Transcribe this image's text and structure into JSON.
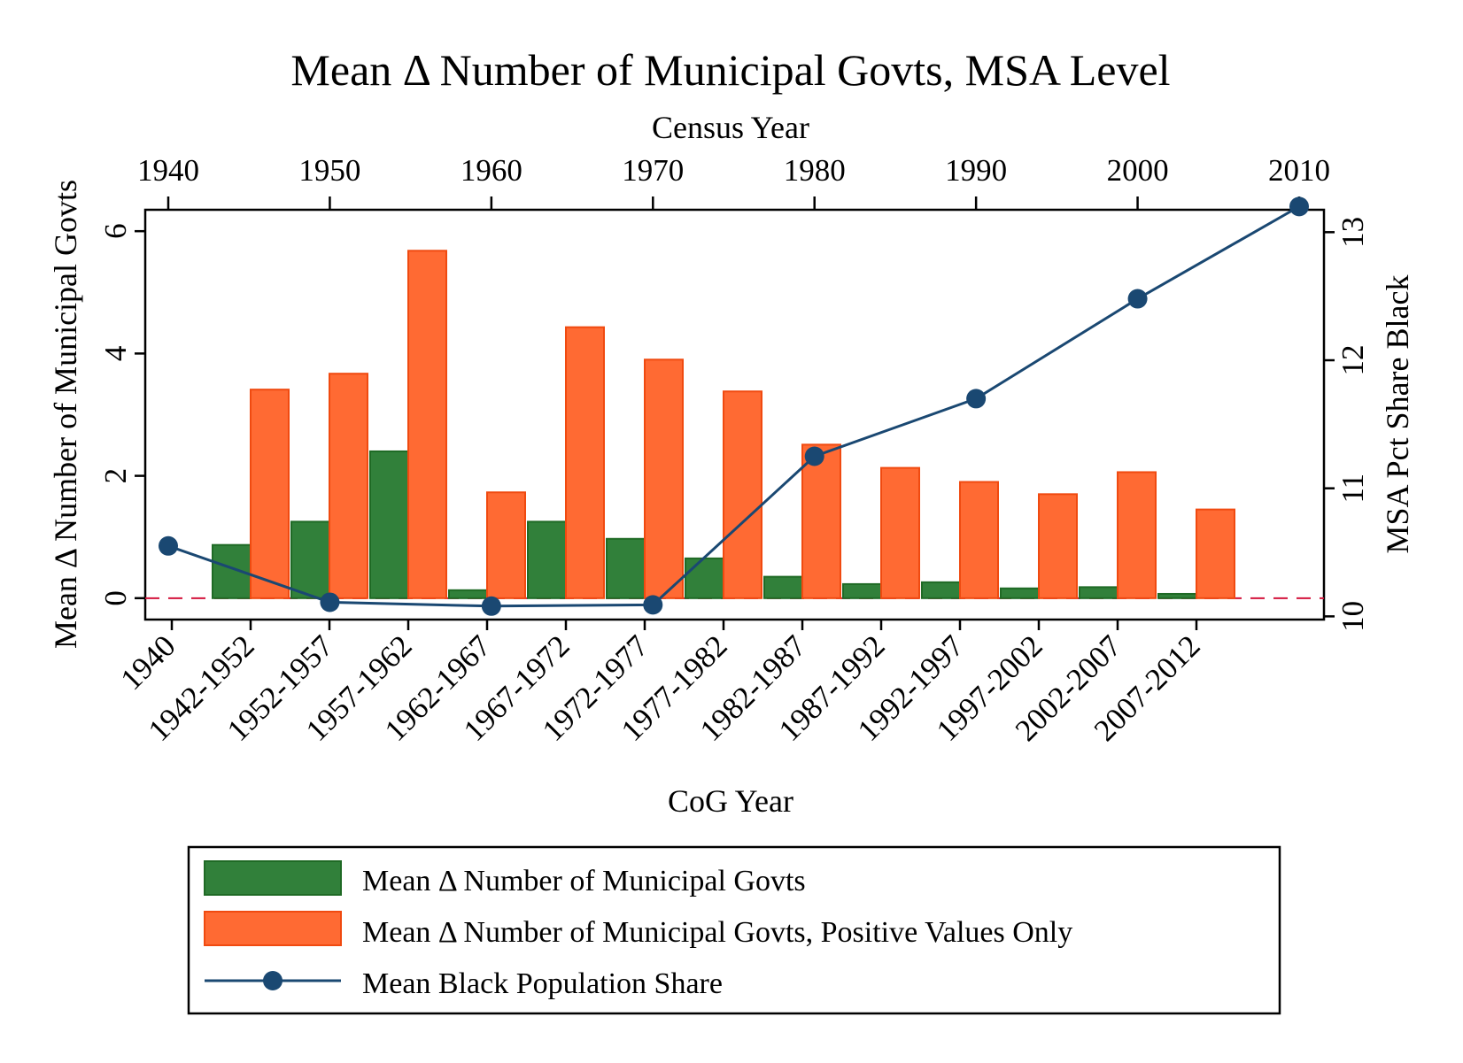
{
  "chart_data": {
    "type": "bar",
    "title": "Mean Δ Number of Municipal Govts, MSA Level",
    "xlabel": "CoG Year",
    "x2label": "Census Year",
    "ylabel": "Mean Δ Number of Municipal Govts",
    "y2label": "MSA Pct Share Black",
    "ylim": [
      -0.35,
      6.35
    ],
    "y_ticks": [
      0,
      2,
      4,
      6
    ],
    "y2lim": [
      9.975,
      13.175
    ],
    "y2_ticks": [
      10,
      11,
      12,
      13
    ],
    "x2lim": [
      1940,
      2010
    ],
    "x2_ticks": [
      1940,
      1950,
      1960,
      1970,
      1980,
      1990,
      2000,
      2010
    ],
    "categories": [
      "1940",
      "1942-1952",
      "1952-1957",
      "1957-1962",
      "1962-1967",
      "1967-1972",
      "1972-1977",
      "1977-1982",
      "1982-1987",
      "1987-1992",
      "1992-1997",
      "1997-2002",
      "2002-2007",
      "2007-2012"
    ],
    "series": [
      {
        "name": "Mean Δ Number of Municipal Govts",
        "kind": "bar",
        "color": "#31803a",
        "edge": "#1f6a25",
        "values": [
          null,
          0.87,
          1.25,
          2.4,
          0.13,
          1.25,
          0.97,
          0.65,
          0.35,
          0.23,
          0.26,
          0.16,
          0.18,
          0.07
        ]
      },
      {
        "name": "Mean Δ Number of Municipal Govts, Positive Values Only",
        "kind": "bar",
        "color": "#ff6a33",
        "edge": "#f04a10",
        "values": [
          null,
          3.41,
          3.67,
          5.68,
          1.73,
          4.43,
          3.9,
          3.38,
          2.51,
          2.13,
          1.9,
          1.7,
          2.06,
          1.45
        ]
      },
      {
        "name": "Mean Black Population Share",
        "kind": "line",
        "axis": "y2",
        "color": "#1a4872",
        "x": [
          1940,
          1950,
          1960,
          1970,
          1980,
          1990,
          2000,
          2010
        ],
        "values": [
          10.55,
          10.11,
          10.08,
          10.09,
          11.25,
          11.7,
          12.48,
          13.2
        ]
      }
    ],
    "reference_line": {
      "y": 0,
      "style": "dashed",
      "color": "#d4143c"
    },
    "legend": {
      "placement": "bottom"
    }
  }
}
